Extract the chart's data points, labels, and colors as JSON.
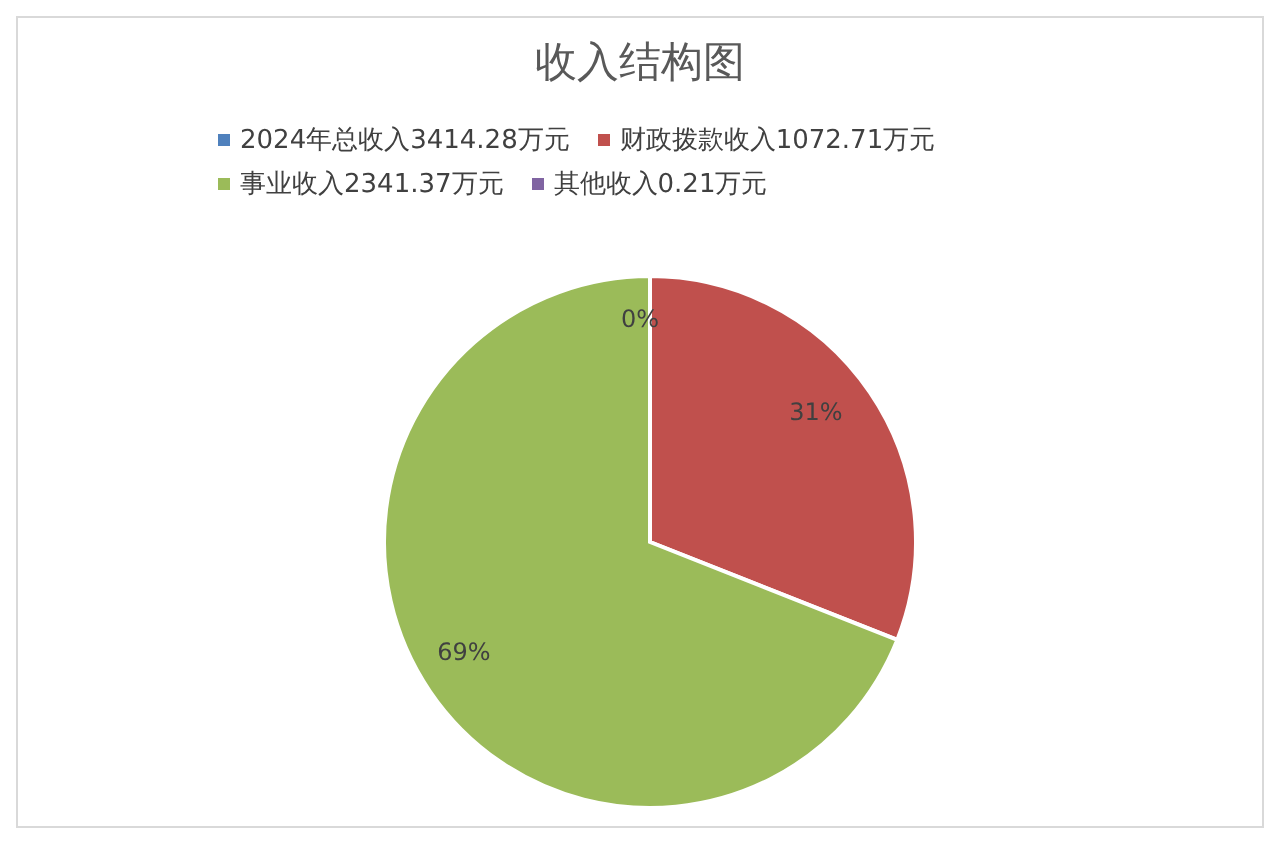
{
  "chart_data": {
    "type": "pie",
    "title": "收入结构图",
    "categories": [
      "2024年总收入3414.28万元",
      "财政拨款收入1072.71万元",
      "事业收入2341.37万元",
      "其他收入0.21万元"
    ],
    "values": [
      null,
      31,
      69,
      0
    ],
    "colors": [
      "#4f81bd",
      "#c0504d",
      "#9bbb59",
      "#8064a2"
    ],
    "value_labels": [
      null,
      "31%",
      "69%",
      "0%"
    ],
    "legend": "top"
  }
}
